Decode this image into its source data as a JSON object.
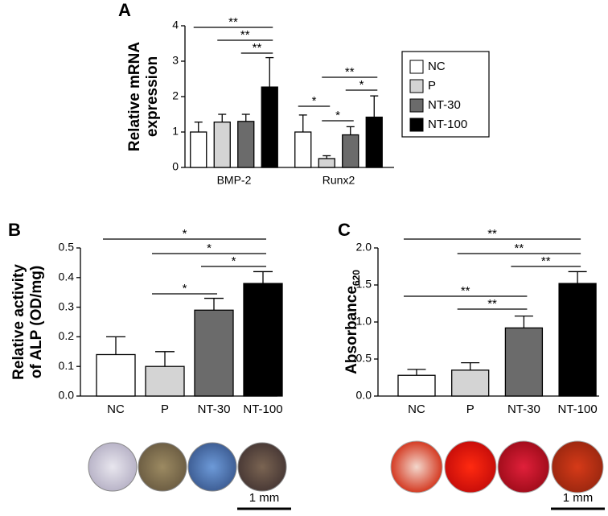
{
  "chart_data": [
    {
      "type": "grouped-bar",
      "panel": "A",
      "ylabel": [
        "Relative mRNA",
        "expression"
      ],
      "categories": [
        "BMP-2",
        "Runx2"
      ],
      "series": [
        {
          "name": "NC",
          "color": "#ffffff",
          "values": [
            1.0,
            1.0
          ],
          "errors": [
            0.28,
            0.48
          ]
        },
        {
          "name": "P",
          "color": "#d4d4d4",
          "values": [
            1.28,
            0.25
          ],
          "errors": [
            0.22,
            0.08
          ]
        },
        {
          "name": "NT-30",
          "color": "#6b6b6b",
          "values": [
            1.3,
            0.92
          ],
          "errors": [
            0.2,
            0.23
          ]
        },
        {
          "name": "NT-100",
          "color": "#000000",
          "values": [
            2.27,
            1.42
          ],
          "errors": [
            0.83,
            0.6
          ]
        }
      ],
      "ylim": [
        0,
        4
      ],
      "yticks": [
        0,
        1,
        2,
        3,
        4
      ],
      "annotations": [
        {
          "text": "**",
          "category": "BMP-2",
          "from": "NC",
          "to": "NT-100"
        },
        {
          "text": "**",
          "category": "BMP-2",
          "from": "P",
          "to": "NT-100"
        },
        {
          "text": "**",
          "category": "BMP-2",
          "from": "NT-30",
          "to": "NT-100"
        },
        {
          "text": "**",
          "category": "Runx2",
          "from": "P",
          "to": "NT-100"
        },
        {
          "text": "*",
          "category": "Runx2",
          "from": "NT-30",
          "to": "NT-100"
        },
        {
          "text": "*",
          "category": "Runx2",
          "from": "NC",
          "to": "P"
        },
        {
          "text": "*",
          "category": "Runx2",
          "from": "P",
          "to": "NT-30"
        }
      ],
      "legend": "right"
    },
    {
      "type": "bar",
      "panel": "B",
      "ylabel": [
        "Relative activity",
        "of ALP (OD/mg)"
      ],
      "categories": [
        "NC",
        "P",
        "NT-30",
        "NT-100"
      ],
      "values": [
        0.14,
        0.1,
        0.29,
        0.38
      ],
      "errors": [
        0.06,
        0.05,
        0.04,
        0.04
      ],
      "colors": [
        "#ffffff",
        "#d4d4d4",
        "#6b6b6b",
        "#000000"
      ],
      "ylim": [
        0,
        0.5
      ],
      "yticks": [
        {
          "value": 0,
          "label": "0.0"
        },
        0.1,
        0.2,
        0.3,
        0.4,
        0.5
      ],
      "annotations": [
        {
          "text": "*",
          "from": "NC",
          "to": "NT-100"
        },
        {
          "text": "*",
          "from": "P",
          "to": "NT-100"
        },
        {
          "text": "*",
          "from": "NT-30",
          "to": "NT-100"
        },
        {
          "text": "*",
          "from": "P",
          "to": "NT-30"
        }
      ],
      "scale_bar": "1 mm"
    },
    {
      "type": "bar",
      "panel": "C",
      "ylabel": [
        "Absorbance"
      ],
      "ylabel_subscript": "620",
      "categories": [
        "NC",
        "P",
        "NT-30",
        "NT-100"
      ],
      "values": [
        0.28,
        0.35,
        0.92,
        1.52
      ],
      "errors": [
        0.08,
        0.1,
        0.16,
        0.16
      ],
      "colors": [
        "#ffffff",
        "#d4d4d4",
        "#6b6b6b",
        "#000000"
      ],
      "ylim": [
        0,
        2
      ],
      "yticks": [
        {
          "value": 0,
          "label": "0.0"
        },
        0.5,
        {
          "value": 1,
          "label": "1.0"
        },
        1.5,
        {
          "value": 2,
          "label": "2.0"
        }
      ],
      "annotations": [
        {
          "text": "**",
          "from": "NC",
          "to": "NT-100"
        },
        {
          "text": "**",
          "from": "P",
          "to": "NT-100"
        },
        {
          "text": "**",
          "from": "NT-30",
          "to": "NT-100"
        },
        {
          "text": "**",
          "from": "NC",
          "to": "NT-30"
        },
        {
          "text": "**",
          "from": "P",
          "to": "NT-30"
        }
      ],
      "scale_bar": "1 mm"
    }
  ]
}
